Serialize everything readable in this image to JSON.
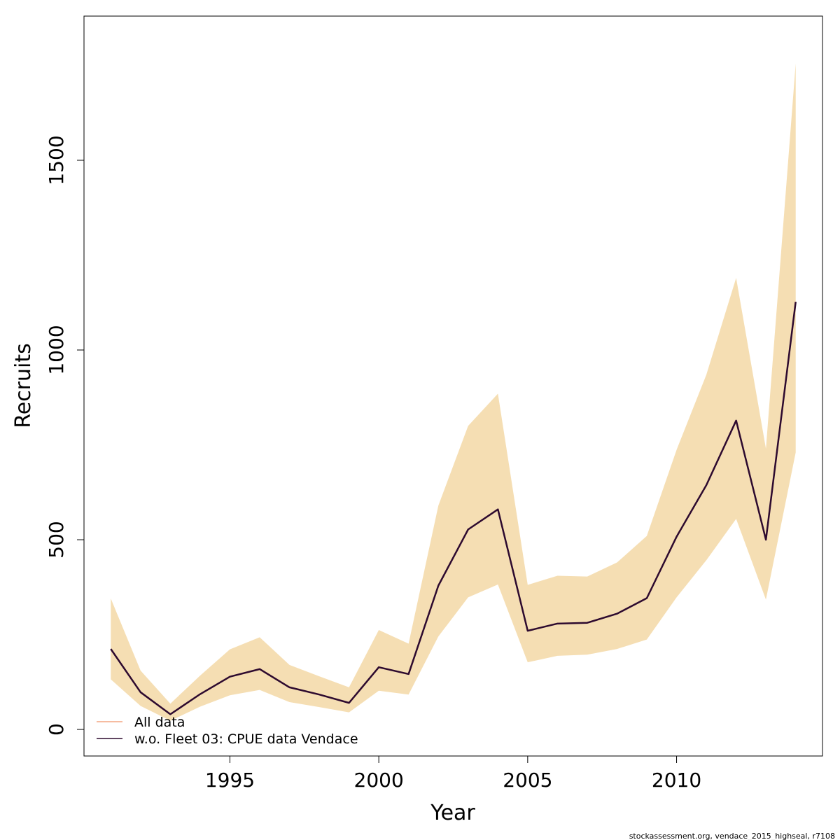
{
  "chart_data": {
    "type": "line",
    "title": "",
    "xlabel": "Year",
    "ylabel": "Recruits",
    "xlim": [
      1990.1,
      2014.9
    ],
    "ylim": [
      -70,
      1880
    ],
    "x_ticks": [
      1995,
      2000,
      2005,
      2010
    ],
    "y_ticks": [
      0,
      500,
      1000,
      1500
    ],
    "grid": false,
    "legend_position": "bottom-left",
    "x": [
      1991,
      1992,
      1993,
      1994,
      1995,
      1996,
      1997,
      1998,
      1999,
      2000,
      2001,
      2002,
      2003,
      2004,
      2005,
      2006,
      2007,
      2008,
      2009,
      2010,
      2011,
      2012,
      2013,
      2014
    ],
    "series": [
      {
        "name": "All data",
        "color": "#f4a582",
        "values": [
          212,
          98,
          40,
          93,
          139,
          159,
          111,
          92,
          70,
          164,
          146,
          379,
          527,
          580,
          260,
          279,
          281,
          305,
          346,
          508,
          644,
          814,
          500,
          1127
        ]
      },
      {
        "name": "w.o. Fleet 03:  CPUE data Vendace",
        "color": "#2d0a2f",
        "values": [
          212,
          98,
          40,
          93,
          139,
          159,
          111,
          92,
          70,
          164,
          146,
          379,
          527,
          580,
          260,
          279,
          281,
          305,
          346,
          508,
          644,
          814,
          500,
          1127
        ]
      }
    ],
    "confidence_band": {
      "color": "#f5deb3",
      "upper": [
        345,
        155,
        68,
        142,
        211,
        243,
        170,
        140,
        111,
        262,
        226,
        590,
        800,
        885,
        381,
        405,
        403,
        440,
        510,
        737,
        935,
        1190,
        740,
        1755
      ],
      "lower": [
        132,
        62,
        23,
        60,
        90,
        104,
        72,
        59,
        45,
        102,
        92,
        245,
        348,
        382,
        177,
        194,
        197,
        212,
        237,
        348,
        446,
        555,
        342,
        730
      ]
    }
  },
  "footer": "stockassessment.org, vendace_2015_highseal, r7108"
}
